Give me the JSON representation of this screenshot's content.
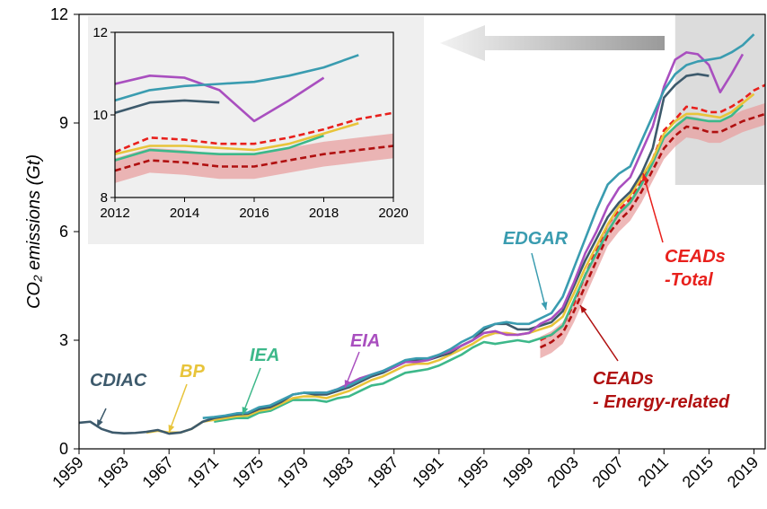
{
  "chart_data": {
    "type": "line",
    "ylabel": "CO₂ emissions (Gt)",
    "xlim": [
      1959,
      2020
    ],
    "ylim": [
      0,
      12
    ],
    "xticks": [
      1959,
      1963,
      1967,
      1971,
      1975,
      1979,
      1983,
      1987,
      1991,
      1995,
      1999,
      2003,
      2007,
      2011,
      2015,
      2019
    ],
    "yticks": [
      0,
      3,
      6,
      9,
      12
    ],
    "x": [
      1959,
      1960,
      1961,
      1962,
      1963,
      1964,
      1965,
      1966,
      1967,
      1968,
      1969,
      1970,
      1971,
      1972,
      1973,
      1974,
      1975,
      1976,
      1977,
      1978,
      1979,
      1980,
      1981,
      1982,
      1983,
      1984,
      1985,
      1986,
      1987,
      1988,
      1989,
      1990,
      1991,
      1992,
      1993,
      1994,
      1995,
      1996,
      1997,
      1998,
      1999,
      2000,
      2001,
      2002,
      2003,
      2004,
      2005,
      2006,
      2007,
      2008,
      2009,
      2010,
      2011,
      2012,
      2013,
      2014,
      2015,
      2016,
      2017,
      2018,
      2019,
      2020
    ],
    "series": [
      {
        "name": "CDIAC",
        "color": "#3d5a6c",
        "dashed": false,
        "values": [
          0.72,
          0.75,
          0.55,
          0.45,
          0.43,
          0.44,
          0.47,
          0.52,
          0.42,
          0.45,
          0.55,
          0.75,
          0.85,
          0.9,
          0.95,
          0.97,
          1.1,
          1.15,
          1.3,
          1.5,
          1.55,
          1.5,
          1.5,
          1.6,
          1.7,
          1.85,
          2.0,
          2.1,
          2.25,
          2.4,
          2.45,
          2.45,
          2.55,
          2.65,
          2.85,
          3.0,
          3.3,
          3.45,
          3.45,
          3.3,
          3.3,
          3.4,
          3.5,
          3.8,
          4.5,
          5.2,
          5.8,
          6.4,
          6.8,
          7.1,
          7.6,
          8.3,
          9.7,
          10.05,
          10.3,
          10.35,
          10.3,
          null,
          null,
          null,
          null,
          null
        ]
      },
      {
        "name": "BP",
        "color": "#e8c43a",
        "dashed": false,
        "values": [
          null,
          null,
          null,
          null,
          null,
          null,
          0.45,
          0.5,
          0.45,
          0.45,
          0.55,
          0.75,
          0.8,
          0.85,
          0.9,
          0.92,
          1.05,
          1.1,
          1.25,
          1.4,
          1.45,
          1.45,
          1.4,
          1.5,
          1.6,
          1.75,
          1.9,
          2.0,
          2.15,
          2.3,
          2.35,
          2.35,
          2.45,
          2.6,
          2.75,
          2.9,
          3.1,
          3.2,
          3.2,
          3.15,
          3.2,
          3.3,
          3.4,
          3.65,
          4.3,
          5.0,
          5.6,
          6.2,
          6.7,
          7.0,
          7.5,
          8.0,
          8.7,
          9.05,
          9.25,
          9.25,
          9.2,
          9.15,
          9.3,
          9.55,
          9.8,
          null
        ]
      },
      {
        "name": "IEA",
        "color": "#3db88a",
        "dashed": false,
        "values": [
          null,
          null,
          null,
          null,
          null,
          null,
          null,
          null,
          null,
          null,
          null,
          null,
          0.75,
          0.8,
          0.85,
          0.85,
          1.0,
          1.05,
          1.2,
          1.35,
          1.35,
          1.35,
          1.3,
          1.4,
          1.45,
          1.6,
          1.75,
          1.8,
          1.95,
          2.1,
          2.15,
          2.2,
          2.3,
          2.45,
          2.6,
          2.8,
          2.95,
          2.9,
          2.95,
          3.0,
          2.95,
          3.05,
          3.15,
          3.4,
          4.1,
          4.8,
          5.4,
          6.0,
          6.5,
          6.8,
          7.3,
          7.9,
          8.6,
          8.9,
          9.15,
          9.1,
          9.05,
          9.05,
          9.2,
          9.5,
          null,
          null
        ]
      },
      {
        "name": "EIA",
        "color": "#a94fbf",
        "dashed": false,
        "values": [
          null,
          null,
          null,
          null,
          null,
          null,
          null,
          null,
          null,
          null,
          null,
          null,
          null,
          null,
          null,
          null,
          null,
          null,
          null,
          null,
          null,
          1.55,
          1.55,
          1.65,
          1.8,
          1.95,
          2.05,
          2.15,
          2.25,
          2.4,
          2.4,
          2.45,
          2.6,
          2.7,
          2.85,
          3.0,
          3.2,
          3.25,
          3.15,
          3.15,
          3.2,
          3.45,
          3.6,
          3.9,
          4.6,
          5.4,
          6.0,
          6.7,
          7.2,
          7.5,
          8.2,
          8.9,
          10.0,
          10.75,
          10.95,
          10.9,
          10.6,
          9.85,
          10.35,
          10.9,
          null,
          null
        ]
      },
      {
        "name": "EDGAR",
        "color": "#3a9cb0",
        "dashed": false,
        "values": [
          null,
          null,
          null,
          null,
          null,
          null,
          null,
          null,
          null,
          null,
          null,
          0.85,
          0.88,
          0.92,
          0.98,
          1.0,
          1.15,
          1.2,
          1.35,
          1.5,
          1.55,
          1.55,
          1.55,
          1.65,
          1.75,
          1.9,
          2.05,
          2.15,
          2.3,
          2.45,
          2.5,
          2.5,
          2.6,
          2.75,
          2.95,
          3.1,
          3.35,
          3.45,
          3.5,
          3.45,
          3.45,
          3.6,
          3.75,
          4.2,
          5.0,
          5.8,
          6.6,
          7.3,
          7.6,
          7.8,
          8.5,
          9.2,
          9.9,
          10.35,
          10.6,
          10.7,
          10.75,
          10.8,
          10.95,
          11.15,
          11.45,
          null
        ]
      },
      {
        "name": [
          "CEADs",
          "-Total"
        ],
        "color": "#e8201c",
        "dashed": true,
        "values": [
          null,
          null,
          null,
          null,
          null,
          null,
          null,
          null,
          null,
          null,
          null,
          null,
          null,
          null,
          null,
          null,
          null,
          null,
          null,
          null,
          null,
          null,
          null,
          null,
          null,
          null,
          null,
          null,
          null,
          null,
          null,
          null,
          null,
          null,
          null,
          null,
          null,
          null,
          null,
          null,
          null,
          3.0,
          3.15,
          3.4,
          4.0,
          4.8,
          5.5,
          6.2,
          6.6,
          6.9,
          7.4,
          8.0,
          8.8,
          9.1,
          9.45,
          9.4,
          9.3,
          9.3,
          9.45,
          9.65,
          9.9,
          10.05
        ]
      },
      {
        "name": [
          "CEADs",
          "- Energy-related"
        ],
        "color": "#b01010",
        "dashed": true,
        "uncertainty": 0.3,
        "band_color": "#e8a0a0",
        "values": [
          null,
          null,
          null,
          null,
          null,
          null,
          null,
          null,
          null,
          null,
          null,
          null,
          null,
          null,
          null,
          null,
          null,
          null,
          null,
          null,
          null,
          null,
          null,
          null,
          null,
          null,
          null,
          null,
          null,
          null,
          null,
          null,
          null,
          null,
          null,
          null,
          null,
          null,
          null,
          null,
          null,
          2.8,
          2.95,
          3.2,
          3.8,
          4.5,
          5.2,
          5.9,
          6.3,
          6.6,
          7.1,
          7.7,
          8.3,
          8.65,
          8.9,
          8.85,
          8.75,
          8.75,
          8.9,
          9.05,
          9.15,
          9.25
        ]
      }
    ],
    "inset": {
      "xlim": [
        2012,
        2020
      ],
      "ylim": [
        8,
        12
      ],
      "xticks": [
        2012,
        2014,
        2016,
        2018,
        2020
      ],
      "yticks": [
        8,
        10,
        12
      ]
    }
  }
}
